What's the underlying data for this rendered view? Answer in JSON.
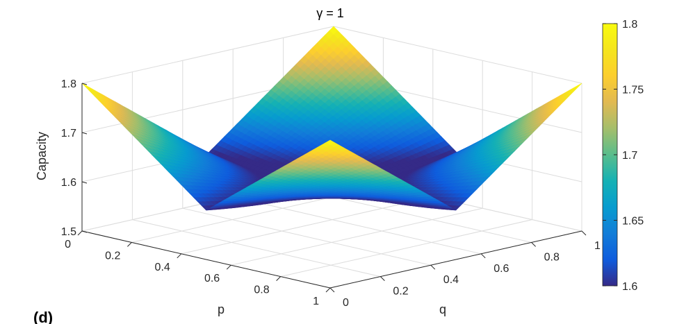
{
  "chart_data": {
    "type": "surface",
    "title": "γ = 1",
    "panel_label": "(d)",
    "xlabel": "p",
    "ylabel": "q",
    "zlabel": "Capacity",
    "x_ticks": [
      "0",
      "0.2",
      "0.4",
      "0.6",
      "0.8",
      "1"
    ],
    "y_ticks": [
      "0",
      "0.2",
      "0.4",
      "0.6",
      "0.8",
      "1"
    ],
    "z_ticks": [
      "1.5",
      "1.6",
      "1.7",
      "1.8"
    ],
    "xlim": [
      0,
      1
    ],
    "ylim": [
      0,
      1
    ],
    "zlim": [
      1.5,
      1.8
    ],
    "grid": true,
    "colormap": "parula",
    "colorbar": {
      "location": "right",
      "range": [
        1.6,
        1.8
      ],
      "ticks": [
        "1.6",
        "1.65",
        "1.7",
        "1.75",
        "1.8"
      ]
    },
    "surface": {
      "corners": {
        "p0_q0": 1.8,
        "p0_q1": 1.8,
        "p1_q0": 1.8,
        "p1_q1": 1.8
      },
      "edge_midpoints": {
        "p0.5_q0": 1.6,
        "p0.5_q1": 1.6,
        "p0_q0.5": 1.6,
        "p1_q0.5": 1.6
      },
      "center_p0.5_q0.5": 1.58
    }
  }
}
